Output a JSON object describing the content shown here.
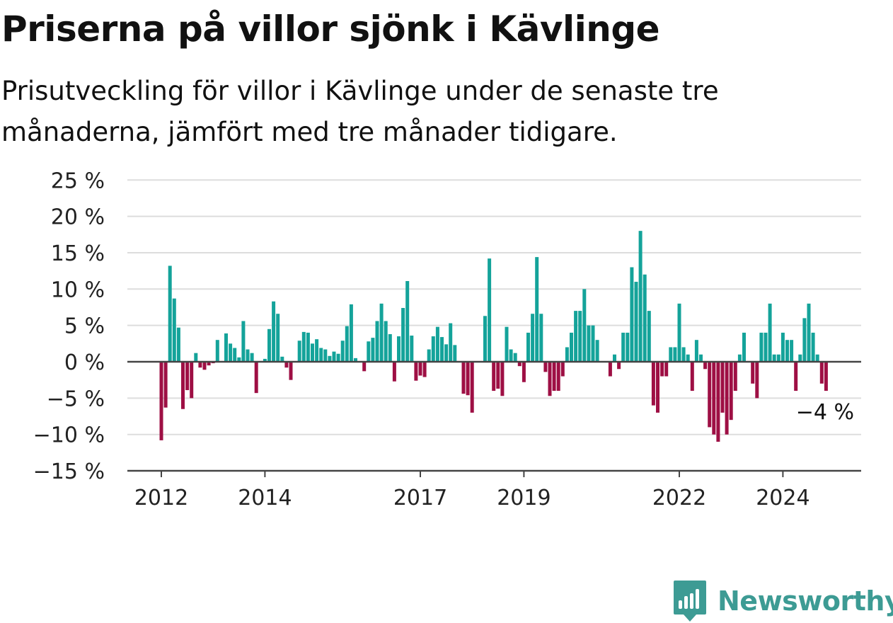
{
  "title": "Priserna på villor sjönk i Kävlinge",
  "subtitle": "Prisutveckling för villor i Kävlinge under de senaste tre månaderna, jämfört med tre månader tidigare.",
  "brand": {
    "name": "Newsworthy",
    "icon": "newsworthy-logo-icon",
    "color": "#3d9b94"
  },
  "colors": {
    "positive": "#14a39a",
    "negative": "#9e0f44",
    "grid": "#dddddd",
    "axis": "#444444"
  },
  "chart_data": {
    "type": "bar",
    "title": "",
    "xlabel": "",
    "ylabel": "",
    "ylim": [
      -15,
      25
    ],
    "y_ticks": [
      25,
      20,
      15,
      10,
      5,
      0,
      -5,
      -10,
      -15
    ],
    "y_tick_labels": [
      "25 %",
      "20 %",
      "15 %",
      "10 %",
      "5 %",
      "0 %",
      "−5 %",
      "−10 %",
      "−15 %"
    ],
    "x_ticks": [
      2012,
      2014,
      2017,
      2019,
      2022,
      2024
    ],
    "x_tick_labels": [
      "2012",
      "2014",
      "2017",
      "2019",
      "2022",
      "2024"
    ],
    "grid": true,
    "start": "2012-01",
    "frequency": "monthly",
    "values": [
      -10.8,
      -6.3,
      13.2,
      8.7,
      4.7,
      -6.5,
      -3.9,
      -5.0,
      1.2,
      -0.8,
      -1.1,
      -0.5,
      -0.2,
      3.0,
      0,
      3.9,
      2.5,
      1.9,
      0.6,
      5.6,
      1.7,
      1.2,
      -4.3,
      0,
      0.4,
      4.5,
      8.3,
      6.6,
      0.7,
      -0.8,
      -2.5,
      0,
      2.9,
      4.1,
      4.0,
      2.5,
      3.1,
      1.9,
      1.7,
      0.8,
      1.4,
      1.1,
      2.9,
      4.9,
      7.9,
      0.5,
      0,
      -1.3,
      2.8,
      3.3,
      5.6,
      8.0,
      5.6,
      3.8,
      -2.7,
      3.5,
      7.4,
      11.1,
      3.6,
      -2.6,
      -1.9,
      -2.1,
      1.7,
      3.5,
      4.8,
      3.4,
      2.4,
      5.3,
      2.3,
      0,
      -4.4,
      -4.6,
      -7.0,
      0,
      0,
      6.3,
      14.2,
      -4.0,
      -3.7,
      -4.7,
      4.8,
      1.7,
      1.2,
      -0.6,
      -2.8,
      4.0,
      6.6,
      14.4,
      6.6,
      -1.4,
      -4.7,
      -4.0,
      -4.0,
      -2.0,
      2.0,
      4.0,
      7.0,
      7.0,
      10.0,
      5.0,
      5.0,
      3.0,
      0,
      0,
      -2.0,
      1.0,
      -1.0,
      4.0,
      4.0,
      13.0,
      11.0,
      18.0,
      12.0,
      7.0,
      -6.0,
      -7.0,
      -2.0,
      -2.0,
      2.0,
      2.0,
      8.0,
      2.0,
      1.0,
      -4.0,
      3.0,
      1.0,
      -1.0,
      -9.0,
      -10.0,
      -11.0,
      -7.0,
      -10.0,
      -8.0,
      -4.0,
      1.0,
      4.0,
      0,
      -3.0,
      -5.0,
      4.0,
      4.0,
      8.0,
      1.0,
      1.0,
      4.0,
      3.0,
      3.0,
      -4.0,
      1.0,
      6.0,
      8.0,
      4.0,
      1.0,
      -3.0,
      -4.0
    ],
    "annotation": "−4 %"
  }
}
